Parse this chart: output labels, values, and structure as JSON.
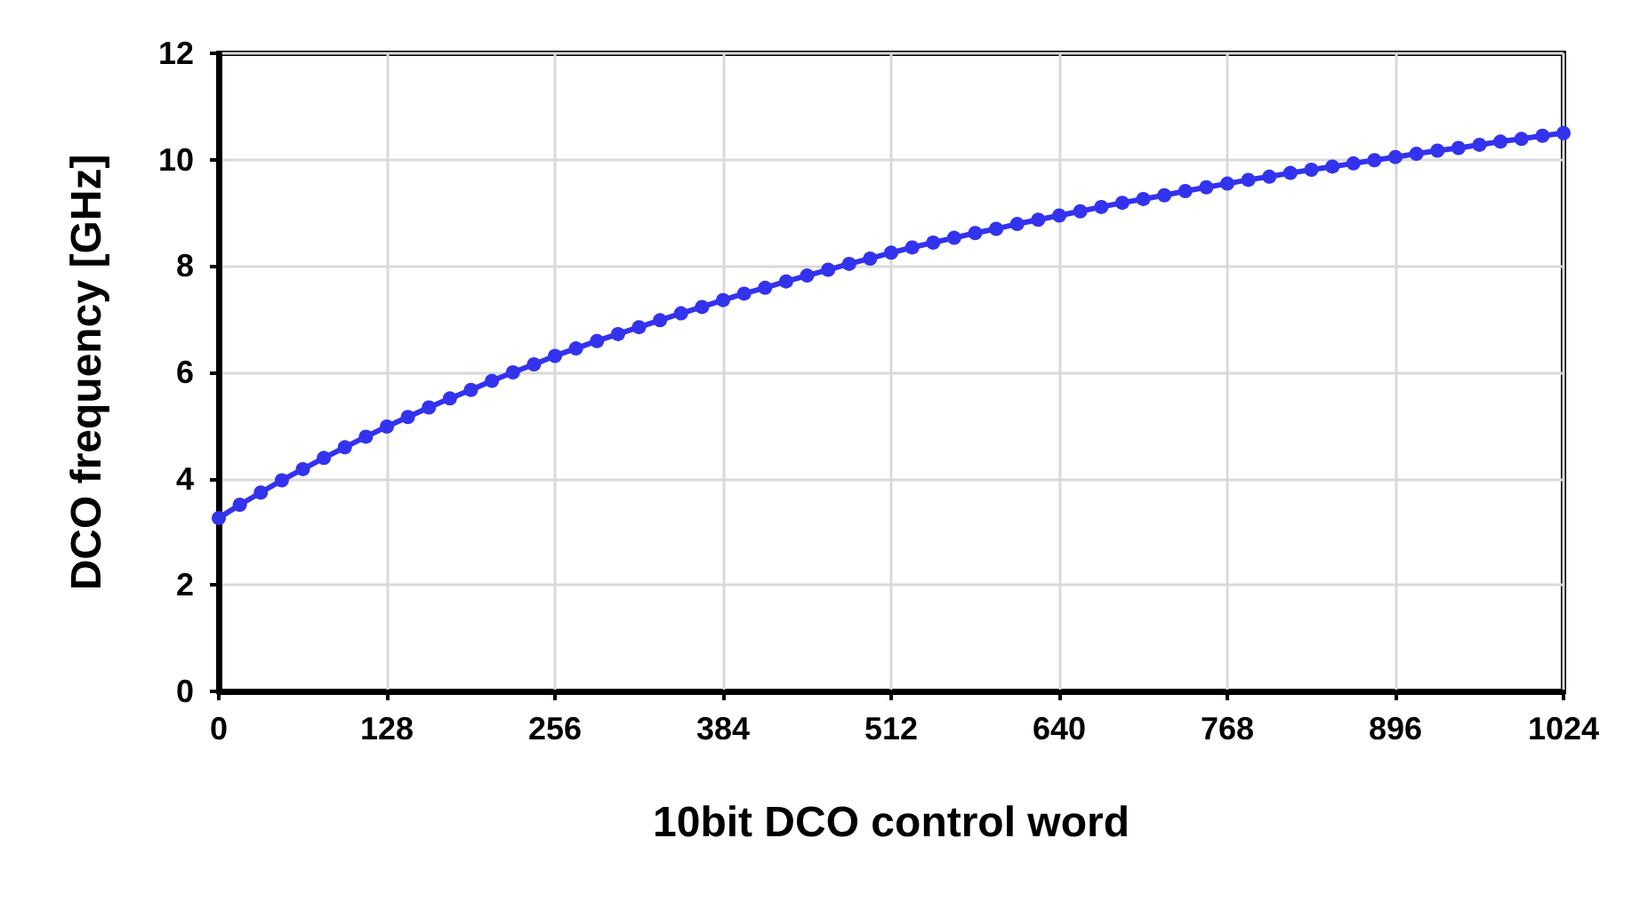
{
  "chart_data": {
    "type": "line",
    "xlabel": "10bit DCO control word",
    "ylabel": "DCO frequency [GHz]",
    "x": [
      0,
      16,
      32,
      48,
      64,
      80,
      96,
      112,
      128,
      144,
      160,
      176,
      192,
      208,
      224,
      240,
      256,
      272,
      288,
      304,
      320,
      336,
      352,
      368,
      384,
      400,
      416,
      432,
      448,
      464,
      480,
      496,
      512,
      528,
      544,
      560,
      576,
      592,
      608,
      624,
      640,
      656,
      672,
      688,
      704,
      720,
      736,
      752,
      768,
      784,
      800,
      816,
      832,
      848,
      864,
      880,
      896,
      912,
      928,
      944,
      960,
      976,
      992,
      1008,
      1024
    ],
    "series": [
      {
        "color": "#3333ee",
        "values": [
          3.26,
          3.51,
          3.74,
          3.97,
          4.18,
          4.39,
          4.59,
          4.79,
          4.98,
          5.16,
          5.34,
          5.51,
          5.67,
          5.84,
          6.0,
          6.15,
          6.31,
          6.45,
          6.59,
          6.72,
          6.85,
          6.98,
          7.11,
          7.23,
          7.36,
          7.48,
          7.59,
          7.71,
          7.82,
          7.93,
          8.04,
          8.14,
          8.25,
          8.35,
          8.44,
          8.53,
          8.62,
          8.7,
          8.79,
          8.87,
          8.95,
          9.03,
          9.11,
          9.19,
          9.26,
          9.33,
          9.41,
          9.48,
          9.55,
          9.62,
          9.68,
          9.75,
          9.81,
          9.87,
          9.93,
          9.99,
          10.05,
          10.11,
          10.17,
          10.22,
          10.28,
          10.34,
          10.39,
          10.45,
          10.5
        ]
      }
    ],
    "xlim": [
      0,
      1024
    ],
    "xticks": [
      0,
      128,
      256,
      384,
      512,
      640,
      768,
      896,
      1024
    ],
    "ylim": [
      0,
      12
    ],
    "yticks": [
      0,
      2,
      4,
      6,
      8,
      10,
      12
    ],
    "grid": true,
    "marker": "circle",
    "line_style": "solid"
  }
}
